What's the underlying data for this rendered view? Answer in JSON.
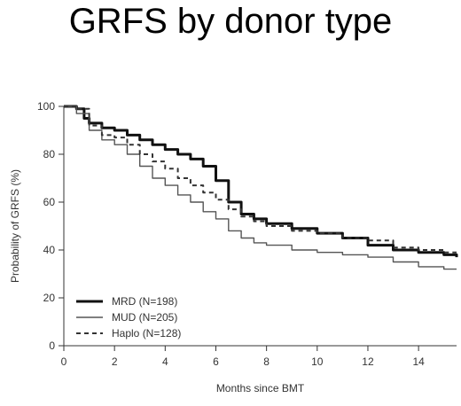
{
  "chart_data": {
    "type": "line",
    "title": "GRFS by donor type",
    "xlabel": "Months since BMT",
    "ylabel": "Probability of GRFS (%)",
    "xlim": [
      0,
      15.5
    ],
    "ylim": [
      0,
      100
    ],
    "x_ticks": [
      "0",
      "2",
      "4",
      "6",
      "8",
      "10",
      "12",
      "14"
    ],
    "y_ticks": [
      "0",
      "20",
      "40",
      "60",
      "80",
      "100"
    ],
    "legend_position": "bottom-left",
    "series": [
      {
        "name": "MRD (N=198)",
        "style": "solid-thick",
        "color": "#111111",
        "points": [
          [
            0,
            100
          ],
          [
            0.5,
            99
          ],
          [
            0.8,
            95
          ],
          [
            1,
            93
          ],
          [
            1.5,
            91
          ],
          [
            2,
            90
          ],
          [
            2.5,
            88
          ],
          [
            3,
            86
          ],
          [
            3.5,
            84
          ],
          [
            4,
            82
          ],
          [
            4.5,
            80
          ],
          [
            5,
            78
          ],
          [
            5.5,
            75
          ],
          [
            6,
            69
          ],
          [
            6.5,
            60
          ],
          [
            7,
            55
          ],
          [
            7.5,
            53
          ],
          [
            8,
            51
          ],
          [
            9,
            49
          ],
          [
            10,
            47
          ],
          [
            11,
            45
          ],
          [
            12,
            42
          ],
          [
            13,
            40
          ],
          [
            14,
            39
          ],
          [
            15,
            38
          ],
          [
            15.5,
            37
          ]
        ]
      },
      {
        "name": "MUD (N=205)",
        "style": "solid-thin",
        "color": "#555555",
        "points": [
          [
            0,
            100
          ],
          [
            0.5,
            97
          ],
          [
            1,
            90
          ],
          [
            1.5,
            86
          ],
          [
            2,
            84
          ],
          [
            2.5,
            80
          ],
          [
            3,
            75
          ],
          [
            3.5,
            70
          ],
          [
            4,
            67
          ],
          [
            4.5,
            63
          ],
          [
            5,
            60
          ],
          [
            5.5,
            56
          ],
          [
            6,
            53
          ],
          [
            6.5,
            48
          ],
          [
            7,
            45
          ],
          [
            7.5,
            43
          ],
          [
            8,
            42
          ],
          [
            9,
            40
          ],
          [
            10,
            39
          ],
          [
            11,
            38
          ],
          [
            12,
            37
          ],
          [
            13,
            35
          ],
          [
            14,
            33
          ],
          [
            15,
            32
          ],
          [
            15.5,
            32
          ]
        ]
      },
      {
        "name": "Haplo (N=128)",
        "style": "dashed",
        "color": "#333333",
        "points": [
          [
            0,
            100
          ],
          [
            0.5,
            99
          ],
          [
            1,
            92
          ],
          [
            1.5,
            88
          ],
          [
            2,
            87
          ],
          [
            2.5,
            84
          ],
          [
            3,
            80
          ],
          [
            3.5,
            77
          ],
          [
            4,
            74
          ],
          [
            4.5,
            70
          ],
          [
            5,
            67
          ],
          [
            5.5,
            64
          ],
          [
            6,
            61
          ],
          [
            6.5,
            57
          ],
          [
            7,
            54
          ],
          [
            7.5,
            52
          ],
          [
            8,
            50
          ],
          [
            9,
            48
          ],
          [
            10,
            47
          ],
          [
            11,
            45
          ],
          [
            12,
            44
          ],
          [
            13,
            41
          ],
          [
            14,
            40
          ],
          [
            15,
            39
          ],
          [
            15.5,
            39
          ]
        ]
      }
    ]
  }
}
